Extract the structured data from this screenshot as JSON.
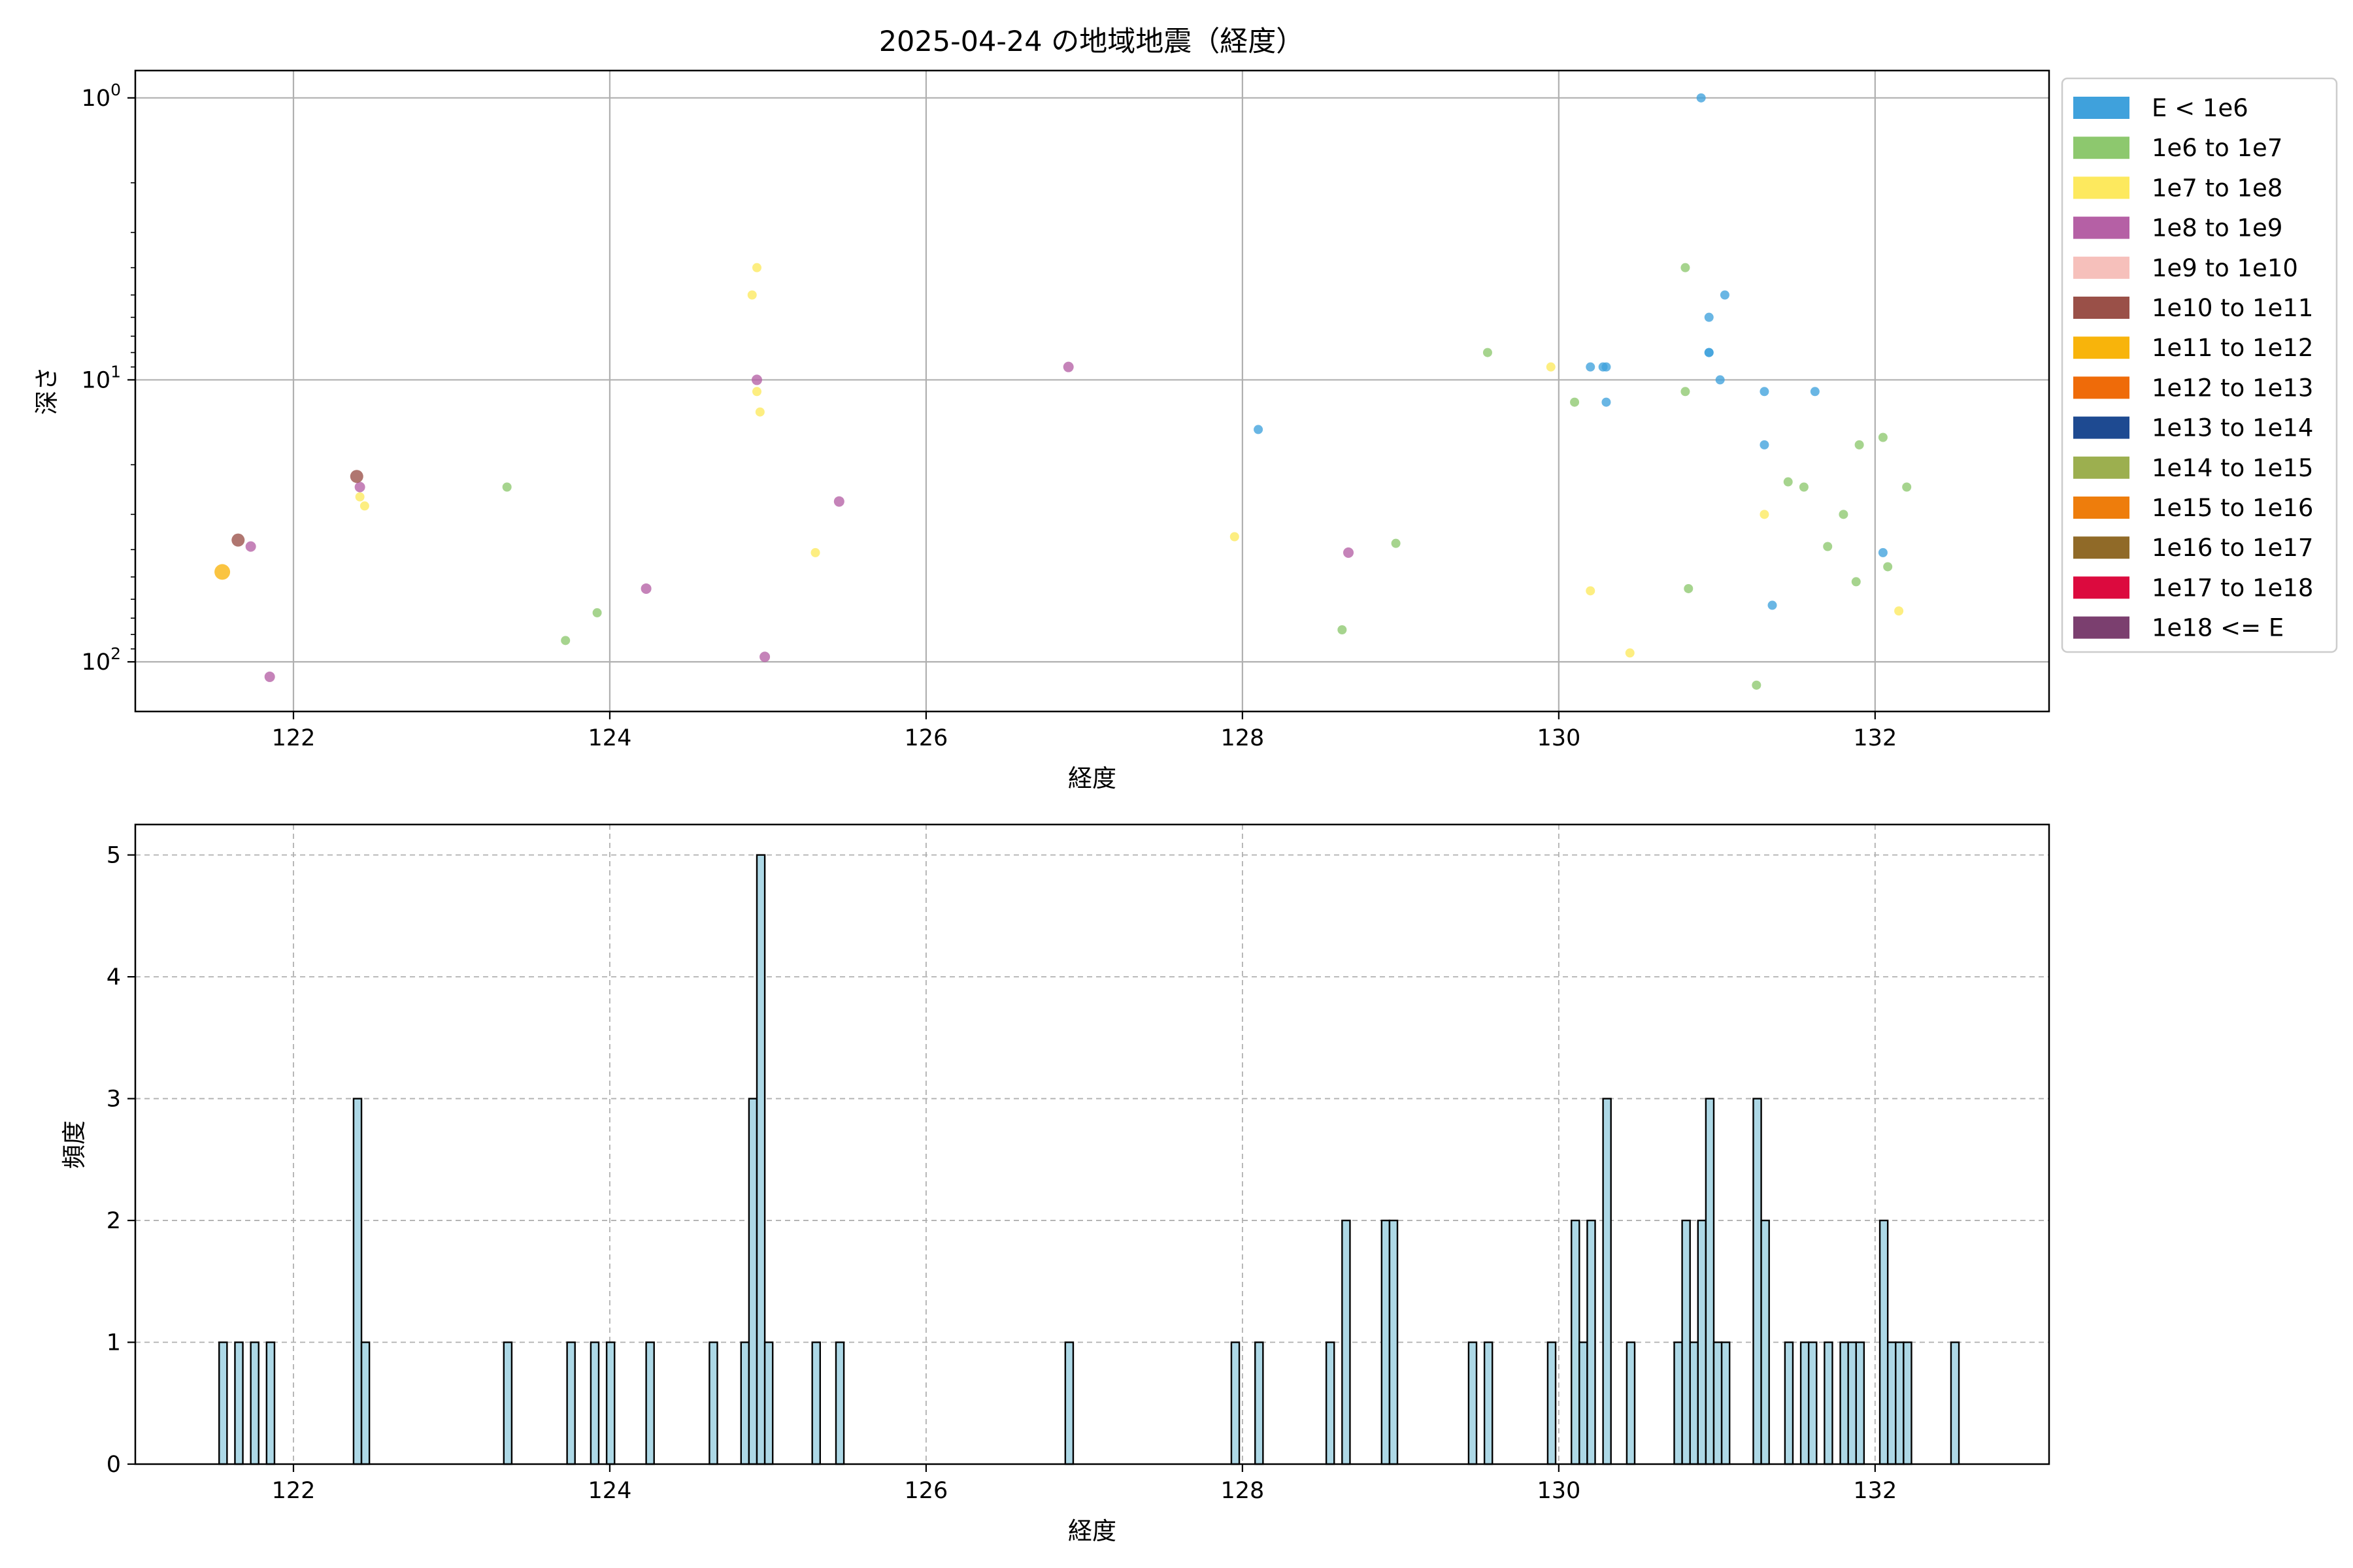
{
  "chart_data": [
    {
      "type": "scatter",
      "title": "2025-04-24 の地域地震（経度）",
      "xlabel": "経度",
      "ylabel": "深さ",
      "xlim": [
        121.0,
        133.1
      ],
      "ylim": [
        150,
        0.8
      ],
      "yscale": "log",
      "y_inverted": true,
      "xticks": [
        "122",
        "124",
        "126",
        "128",
        "130",
        "132"
      ],
      "xtick_values": [
        122,
        124,
        126,
        128,
        130,
        132
      ],
      "yticks": [
        {
          "base": "10",
          "exp": "0",
          "value": 1
        },
        {
          "base": "10",
          "exp": "1",
          "value": 10
        },
        {
          "base": "10",
          "exp": "2",
          "value": 100
        }
      ],
      "grid": true,
      "legend_placement": "outside-right",
      "legend": [
        {
          "label": "E < 1e6",
          "color": "#3fa1dc"
        },
        {
          "label": "1e6 to 1e7",
          "color": "#8dc86e"
        },
        {
          "label": "1e7 to 1e8",
          "color": "#fde95e"
        },
        {
          "label": "1e8 to 1e9",
          "color": "#b560a5"
        },
        {
          "label": "1e9 to 1e10",
          "color": "#f6c0bb"
        },
        {
          "label": "1e10 to 1e11",
          "color": "#9a5048"
        },
        {
          "label": "1e11 to 1e12",
          "color": "#f8b40b"
        },
        {
          "label": "1e12 to 1e13",
          "color": "#ef6b09"
        },
        {
          "label": "1e13 to 1e14",
          "color": "#1e4a91"
        },
        {
          "label": "1e14 to 1e15",
          "color": "#9caf4f"
        },
        {
          "label": "1e15 to 1e16",
          "color": "#ee7d0c"
        },
        {
          "label": "1e16 to 1e17",
          "color": "#906a28"
        },
        {
          "label": "1e17 to 1e18",
          "color": "#dc0a3e"
        },
        {
          "label": "1e18 <= E",
          "color": "#7b3f6f"
        }
      ],
      "series": [
        {
          "class": 0,
          "points": [
            [
              130.9,
              1.0
            ],
            [
              131.05,
              5
            ],
            [
              130.95,
              6
            ],
            [
              130.95,
              8
            ],
            [
              130.95,
              8
            ],
            [
              130.2,
              9
            ],
            [
              130.3,
              9
            ],
            [
              130.28,
              9
            ],
            [
              131.02,
              10
            ],
            [
              131.3,
              11
            ],
            [
              131.62,
              11
            ],
            [
              130.3,
              12
            ],
            [
              128.1,
              15
            ],
            [
              131.3,
              17
            ],
            [
              132.05,
              41
            ],
            [
              131.35,
              63
            ]
          ]
        },
        {
          "class": 1,
          "points": [
            [
              130.8,
              4
            ],
            [
              129.55,
              8
            ],
            [
              130.8,
              11
            ],
            [
              130.1,
              12
            ],
            [
              132.05,
              16
            ],
            [
              131.9,
              17
            ],
            [
              132.2,
              24
            ],
            [
              123.35,
              24
            ],
            [
              131.45,
              23
            ],
            [
              131.55,
              24
            ],
            [
              131.8,
              30
            ],
            [
              128.97,
              38
            ],
            [
              131.7,
              39
            ],
            [
              132.08,
              46
            ],
            [
              131.88,
              52
            ],
            [
              130.82,
              55
            ],
            [
              123.92,
              67
            ],
            [
              123.72,
              84
            ],
            [
              128.63,
              77
            ],
            [
              131.25,
              121
            ]
          ]
        },
        {
          "class": 2,
          "points": [
            [
              124.93,
              4
            ],
            [
              124.9,
              5
            ],
            [
              129.95,
              9
            ],
            [
              124.93,
              11
            ],
            [
              124.95,
              13
            ],
            [
              122.42,
              26
            ],
            [
              122.45,
              28
            ],
            [
              131.3,
              30
            ],
            [
              127.95,
              36
            ],
            [
              125.3,
              41
            ],
            [
              130.2,
              56
            ],
            [
              132.15,
              66
            ],
            [
              130.45,
              93
            ]
          ]
        },
        {
          "class": 3,
          "points": [
            [
              126.9,
              9
            ],
            [
              124.93,
              10
            ],
            [
              122.42,
              24
            ],
            [
              125.45,
              27
            ],
            [
              121.73,
              39
            ],
            [
              128.67,
              41
            ],
            [
              124.23,
              55
            ],
            [
              124.98,
              96
            ],
            [
              121.85,
              113
            ]
          ]
        },
        {
          "class": 5,
          "points": [
            [
              122.4,
              22
            ],
            [
              121.65,
              37
            ]
          ]
        },
        {
          "class": 6,
          "points": [
            [
              121.55,
              48
            ]
          ]
        }
      ]
    },
    {
      "type": "bar",
      "xlabel": "経度",
      "ylabel": "頻度",
      "xlim": [
        121.0,
        133.1
      ],
      "ylim": [
        0,
        5.25
      ],
      "xticks": [
        "122",
        "124",
        "126",
        "128",
        "130",
        "132"
      ],
      "xtick_values": [
        122,
        124,
        126,
        128,
        130,
        132
      ],
      "yticks": [
        "0",
        "1",
        "2",
        "3",
        "4",
        "5"
      ],
      "ytick_values": [
        0,
        1,
        2,
        3,
        4,
        5
      ],
      "grid": true,
      "bar_color": "#add8e6",
      "bin_width": 0.05,
      "bins": [
        [
          121.53,
          1
        ],
        [
          121.63,
          1
        ],
        [
          121.73,
          1
        ],
        [
          121.83,
          1
        ],
        [
          122.38,
          3
        ],
        [
          122.43,
          1
        ],
        [
          123.33,
          1
        ],
        [
          123.73,
          1
        ],
        [
          123.88,
          1
        ],
        [
          123.98,
          1
        ],
        [
          124.23,
          1
        ],
        [
          124.63,
          1
        ],
        [
          124.83,
          1
        ],
        [
          124.88,
          3
        ],
        [
          124.93,
          5
        ],
        [
          124.98,
          1
        ],
        [
          125.28,
          1
        ],
        [
          125.43,
          1
        ],
        [
          126.88,
          1
        ],
        [
          127.93,
          1
        ],
        [
          128.08,
          1
        ],
        [
          128.53,
          1
        ],
        [
          128.63,
          2
        ],
        [
          128.88,
          2
        ],
        [
          128.93,
          2
        ],
        [
          129.43,
          1
        ],
        [
          129.53,
          1
        ],
        [
          129.93,
          1
        ],
        [
          130.08,
          2
        ],
        [
          130.13,
          1
        ],
        [
          130.18,
          2
        ],
        [
          130.28,
          3
        ],
        [
          130.43,
          1
        ],
        [
          130.73,
          1
        ],
        [
          130.78,
          2
        ],
        [
          130.83,
          1
        ],
        [
          130.88,
          2
        ],
        [
          130.93,
          3
        ],
        [
          130.98,
          1
        ],
        [
          131.03,
          1
        ],
        [
          131.23,
          3
        ],
        [
          131.28,
          2
        ],
        [
          131.43,
          1
        ],
        [
          131.53,
          1
        ],
        [
          131.58,
          1
        ],
        [
          131.68,
          1
        ],
        [
          131.78,
          1
        ],
        [
          131.83,
          1
        ],
        [
          131.88,
          1
        ],
        [
          132.03,
          2
        ],
        [
          132.08,
          1
        ],
        [
          132.13,
          1
        ],
        [
          132.18,
          1
        ],
        [
          132.48,
          1
        ]
      ]
    }
  ]
}
